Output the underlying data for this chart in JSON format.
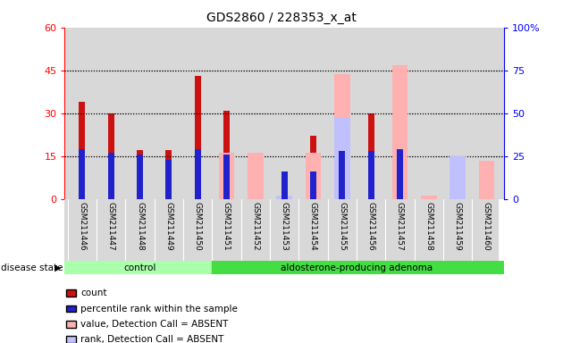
{
  "title": "GDS2860 / 228353_x_at",
  "samples": [
    "GSM211446",
    "GSM211447",
    "GSM211448",
    "GSM211449",
    "GSM211450",
    "GSM211451",
    "GSM211452",
    "GSM211453",
    "GSM211454",
    "GSM211455",
    "GSM211456",
    "GSM211457",
    "GSM211458",
    "GSM211459",
    "GSM211460"
  ],
  "count": [
    34,
    30,
    17,
    17,
    43,
    31,
    0,
    0,
    22,
    0,
    30,
    0,
    0,
    0,
    0
  ],
  "percentile_rank": [
    29,
    27,
    26,
    23,
    29,
    26,
    0,
    16,
    16,
    28,
    28,
    29,
    0,
    0,
    0
  ],
  "absent_value": [
    0,
    0,
    0,
    0,
    0,
    27,
    27,
    2,
    27,
    73,
    0,
    78,
    2,
    25,
    22
  ],
  "absent_rank": [
    0,
    0,
    0,
    0,
    0,
    0,
    0,
    2,
    0,
    48,
    0,
    0,
    0,
    25,
    0
  ],
  "control_count": 5,
  "group1_label": "control",
  "group2_label": "aldosterone-producing adenoma",
  "ylim_left": [
    0,
    60
  ],
  "ylim_right": [
    0,
    100
  ],
  "yticks_left": [
    0,
    15,
    30,
    45,
    60
  ],
  "yticks_right": [
    0,
    25,
    50,
    75,
    100
  ],
  "color_count": "#cc1111",
  "color_rank": "#2222cc",
  "color_absent_value": "#ffb0b0",
  "color_absent_rank": "#c0c0ff",
  "bg_plot": "#d8d8d8",
  "bg_group1": "#aaffaa",
  "bg_group2": "#44dd44",
  "legend_items": [
    "count",
    "percentile rank within the sample",
    "value, Detection Call = ABSENT",
    "rank, Detection Call = ABSENT"
  ]
}
